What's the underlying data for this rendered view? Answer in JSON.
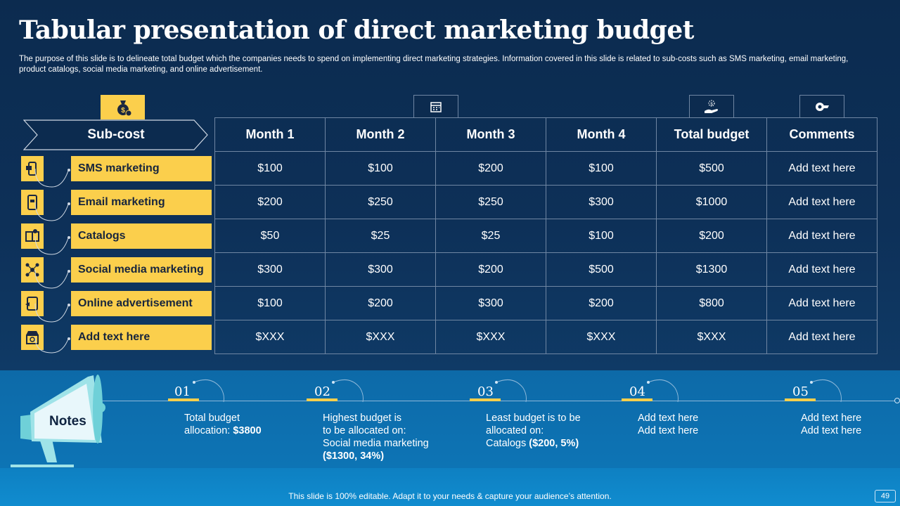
{
  "title": "Tabular presentation of direct marketing budget",
  "subtitle": "The purpose of this slide is to delineate total budget which the companies needs to spend on implementing direct marketing strategies. Information covered in this slide is related to sub-costs such as SMS marketing, email marketing, product catalogs, social media marketing, and online advertisement.",
  "subcost_header": "Sub-cost",
  "table": {
    "headers": [
      "Month 1",
      "Month 2",
      "Month 3",
      "Month 4",
      "Total budget",
      "Comments"
    ],
    "rows": [
      {
        "label": "SMS marketing",
        "icon": "phone-icon",
        "cells": [
          "$100",
          "$100",
          "$200",
          "$100",
          "$500",
          "Add text here"
        ]
      },
      {
        "label": "Email marketing",
        "icon": "mobile-mail-icon",
        "cells": [
          "$200",
          "$250",
          "$250",
          "$300",
          "$1000",
          "Add text here"
        ]
      },
      {
        "label": "Catalogs",
        "icon": "catalog-icon",
        "cells": [
          "$50",
          "$25",
          "$25",
          "$100",
          "$200",
          "Add text here"
        ]
      },
      {
        "label": "Social media marketing",
        "icon": "network-icon",
        "cells": [
          "$300",
          "$300",
          "$200",
          "$500",
          "$1300",
          "Add text here"
        ]
      },
      {
        "label": "Online advertisement",
        "icon": "tablet-ad-icon",
        "cells": [
          "$100",
          "$200",
          "$300",
          "$200",
          "$800",
          "Add text here"
        ]
      },
      {
        "label": "Add text here",
        "icon": "store-icon",
        "cells": [
          "$XXX",
          "$XXX",
          "$XXX",
          "$XXX",
          "$XXX",
          "Add text here"
        ]
      }
    ]
  },
  "notes": {
    "label": "Notes",
    "steps": [
      {
        "num": "01",
        "lines": [
          "Total budget",
          "allocation: "
        ],
        "bold": "$3800"
      },
      {
        "num": "02",
        "lines": [
          "Highest budget is",
          "to be allocated on:",
          "Social media marketing"
        ],
        "bold": "($1300, 34%)"
      },
      {
        "num": "03",
        "lines": [
          "Least budget is to be",
          "allocated on:",
          "Catalogs "
        ],
        "bold": "($200, 5%)"
      },
      {
        "num": "04",
        "lines": [
          "Add text here",
          "Add text here"
        ],
        "bold": ""
      },
      {
        "num": "05",
        "lines": [
          "Add text here",
          "Add text here"
        ],
        "bold": ""
      }
    ]
  },
  "footer": "This slide is 100% editable. Adapt it to your needs & capture your audience’s attention.",
  "page_number": "49",
  "colors": {
    "accent": "#fbcf4c",
    "background": "#0c2a4d",
    "notes_band": "#0d6aa8"
  }
}
